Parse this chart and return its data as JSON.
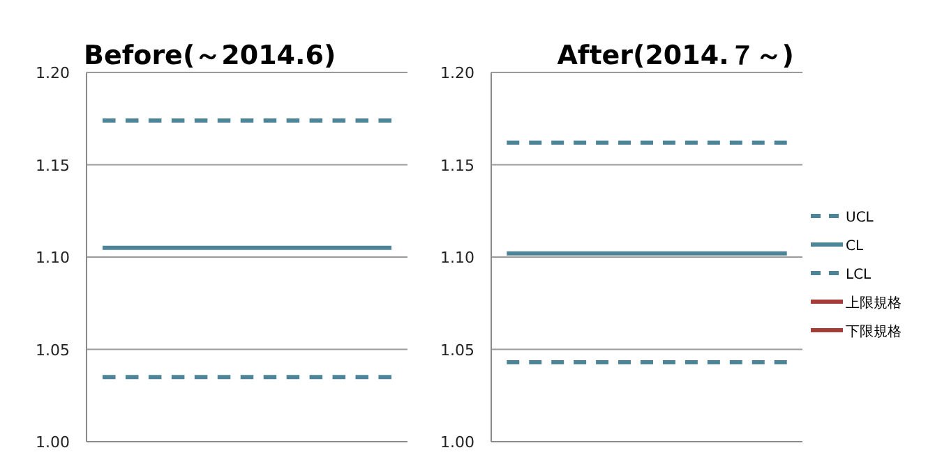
{
  "chart_data": [
    {
      "type": "line",
      "title": "Before(～2014.6)",
      "categories": [
        null,
        null,
        null,
        null,
        null,
        null,
        null,
        null,
        null,
        null
      ],
      "series": [
        {
          "color": "#4e8497",
          "line_style": "dashed",
          "values": [
            1.174,
            1.174,
            1.174,
            1.174,
            1.174,
            1.174,
            1.174,
            1.174,
            1.174,
            1.174
          ]
        },
        {
          "color": "#4e8497",
          "line_style": "solid",
          "values": [
            1.105,
            1.105,
            1.105,
            1.105,
            1.105,
            1.105,
            1.105,
            1.105,
            1.105,
            1.105
          ]
        },
        {
          "color": "#4e8497",
          "line_style": "dashed",
          "values": [
            1.035,
            1.035,
            1.035,
            1.035,
            1.035,
            1.035,
            1.035,
            1.035,
            1.035,
            1.035
          ]
        }
      ],
      "ylim": [
        1.0,
        1.2
      ],
      "yticks": [
        {
          "value": 1.0,
          "label": "1.00"
        },
        {
          "value": 1.05,
          "label": "1.05"
        },
        {
          "value": 1.1,
          "label": "1.10"
        },
        {
          "value": 1.15,
          "label": "1.15"
        },
        {
          "value": 1.2,
          "label": "1.20"
        }
      ],
      "grid": "y",
      "tick_labels": "y",
      "legend": false
    },
    {
      "type": "line",
      "title": "After(2014.７～)",
      "categories": [
        null,
        null,
        null,
        null,
        null,
        null,
        null,
        null,
        null,
        null
      ],
      "series": [
        {
          "name": "UCL",
          "color": "#4e8497",
          "line_style": "dashed",
          "values": [
            1.162,
            1.162,
            1.162,
            1.162,
            1.162,
            1.162,
            1.162,
            1.162,
            1.162,
            1.162
          ]
        },
        {
          "name": "CL",
          "color": "#4e8497",
          "line_style": "solid",
          "values": [
            1.102,
            1.102,
            1.102,
            1.102,
            1.102,
            1.102,
            1.102,
            1.102,
            1.102,
            1.102
          ]
        },
        {
          "name": "LCL",
          "color": "#4e8497",
          "line_style": "dashed",
          "values": [
            1.043,
            1.043,
            1.043,
            1.043,
            1.043,
            1.043,
            1.043,
            1.043,
            1.043,
            1.043
          ]
        },
        {
          "name": "上限規格",
          "color": "#a63c38",
          "line_style": "solid",
          "values": [
            null,
            null,
            null,
            null,
            null,
            null,
            null,
            null,
            null,
            null
          ]
        },
        {
          "name": "下限規格",
          "color": "#a63c38",
          "line_style": "solid",
          "values": [
            null,
            null,
            null,
            null,
            null,
            null,
            null,
            null,
            null,
            null
          ]
        }
      ],
      "ylim": [
        1.0,
        1.2
      ],
      "yticks": [
        {
          "value": 1.0,
          "label": "1.00"
        },
        {
          "value": 1.05,
          "label": "1.05"
        },
        {
          "value": 1.1,
          "label": "1.10"
        },
        {
          "value": 1.15,
          "label": "1.15"
        },
        {
          "value": 1.2,
          "label": "1.20"
        }
      ],
      "grid": "y",
      "tick_labels": "y",
      "legend": "right"
    }
  ]
}
